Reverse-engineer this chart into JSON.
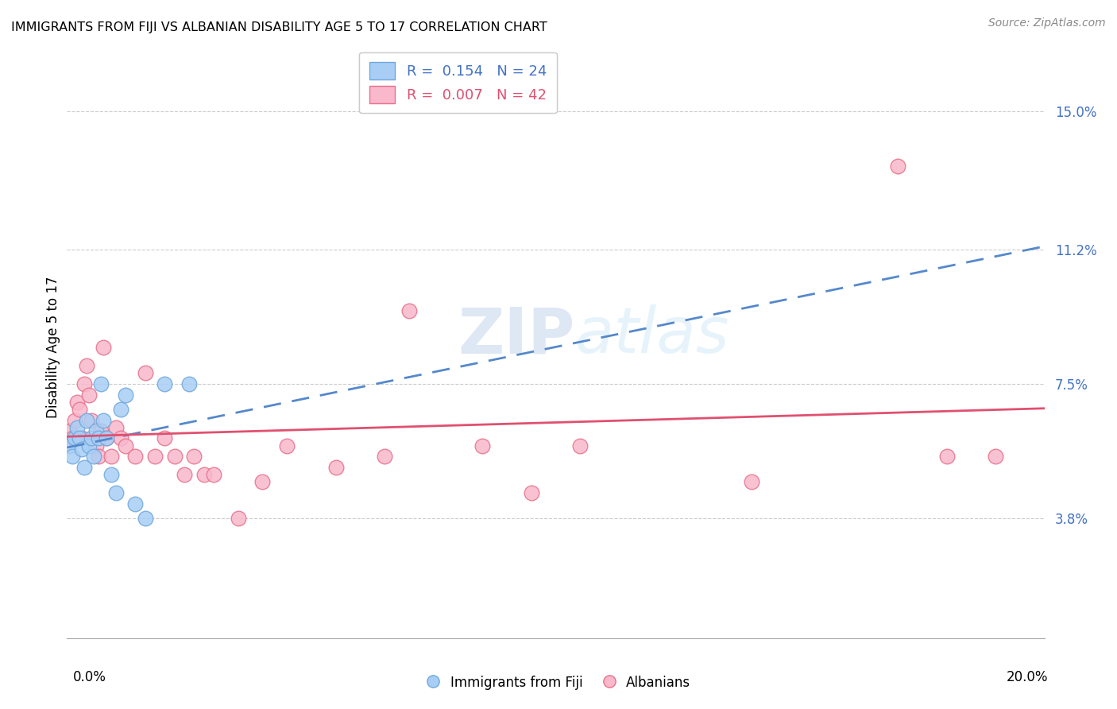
{
  "title": "IMMIGRANTS FROM FIJI VS ALBANIAN DISABILITY AGE 5 TO 17 CORRELATION CHART",
  "source": "Source: ZipAtlas.com",
  "ylabel": "Disability Age 5 to 17",
  "ytick_labels": [
    "3.8%",
    "7.5%",
    "11.2%",
    "15.0%"
  ],
  "ytick_values": [
    3.8,
    7.5,
    11.2,
    15.0
  ],
  "xmin": 0.0,
  "xmax": 20.0,
  "ymin": 0.5,
  "ymax": 16.5,
  "fiji_R": 0.154,
  "fiji_N": 24,
  "albanian_R": 0.007,
  "albanian_N": 42,
  "fiji_color": "#a8cef5",
  "albanian_color": "#f9b8cc",
  "fiji_edge_color": "#6fa8dc",
  "albanian_edge_color": "#e8708a",
  "fiji_line_color": "#5588cc",
  "albanian_line_color": "#e05070",
  "fiji_x": [
    0.05,
    0.1,
    0.15,
    0.2,
    0.25,
    0.3,
    0.35,
    0.4,
    0.45,
    0.5,
    0.55,
    0.6,
    0.65,
    0.7,
    0.75,
    0.8,
    0.9,
    1.0,
    1.1,
    1.2,
    1.4,
    1.6,
    2.0,
    2.5
  ],
  "fiji_y": [
    5.8,
    5.5,
    6.0,
    6.3,
    6.0,
    5.7,
    5.2,
    6.5,
    5.8,
    6.0,
    5.5,
    6.2,
    6.0,
    7.5,
    6.5,
    6.0,
    5.0,
    4.5,
    6.8,
    7.2,
    4.2,
    3.8,
    7.5,
    7.5
  ],
  "albanian_x": [
    0.05,
    0.1,
    0.15,
    0.2,
    0.25,
    0.3,
    0.35,
    0.4,
    0.45,
    0.5,
    0.55,
    0.6,
    0.65,
    0.7,
    0.75,
    0.8,
    0.9,
    1.0,
    1.1,
    1.2,
    1.4,
    1.6,
    1.8,
    2.0,
    2.2,
    2.4,
    2.6,
    2.8,
    3.0,
    3.5,
    4.0,
    4.5,
    5.5,
    6.5,
    7.0,
    8.5,
    9.5,
    10.5,
    14.0,
    17.0,
    18.0,
    19.0
  ],
  "albanian_y": [
    6.2,
    6.0,
    6.5,
    7.0,
    6.8,
    6.0,
    7.5,
    8.0,
    7.2,
    6.5,
    6.0,
    5.8,
    5.5,
    6.2,
    8.5,
    6.0,
    5.5,
    6.3,
    6.0,
    5.8,
    5.5,
    7.8,
    5.5,
    6.0,
    5.5,
    5.0,
    5.5,
    5.0,
    5.0,
    3.8,
    4.8,
    5.8,
    5.2,
    5.5,
    9.5,
    5.8,
    4.5,
    5.8,
    4.8,
    13.5,
    5.5,
    5.5
  ],
  "watermark_zip": "ZIP",
  "watermark_atlas": "atlas"
}
